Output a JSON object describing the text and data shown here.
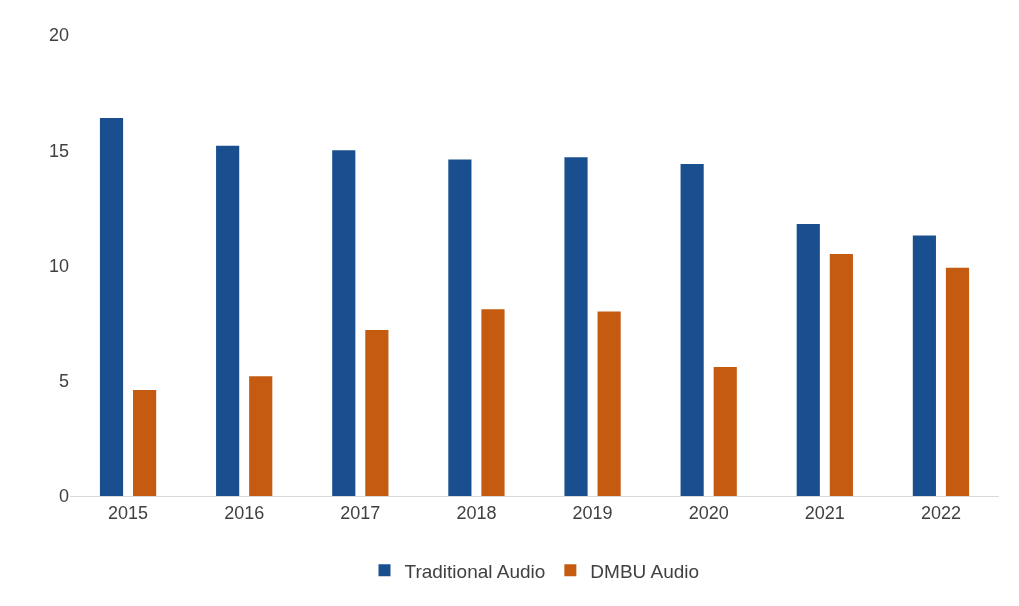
{
  "chart_data": {
    "type": "bar",
    "categories": [
      "2015",
      "2016",
      "2017",
      "2018",
      "2019",
      "2020",
      "2021",
      "2022"
    ],
    "series": [
      {
        "name": "Traditional Audio",
        "color": "#1a4f8f",
        "values": [
          16.4,
          15.2,
          15.0,
          14.6,
          14.7,
          14.4,
          11.8,
          11.3
        ]
      },
      {
        "name": "DMBU Audio",
        "color": "#c55a11",
        "values": [
          4.6,
          5.2,
          7.2,
          8.1,
          8.0,
          5.6,
          10.5,
          9.9
        ]
      }
    ],
    "ylim": [
      0,
      20
    ],
    "yticks": [
      0,
      5,
      10,
      15,
      20
    ],
    "grid": false,
    "legend": "bottom"
  }
}
